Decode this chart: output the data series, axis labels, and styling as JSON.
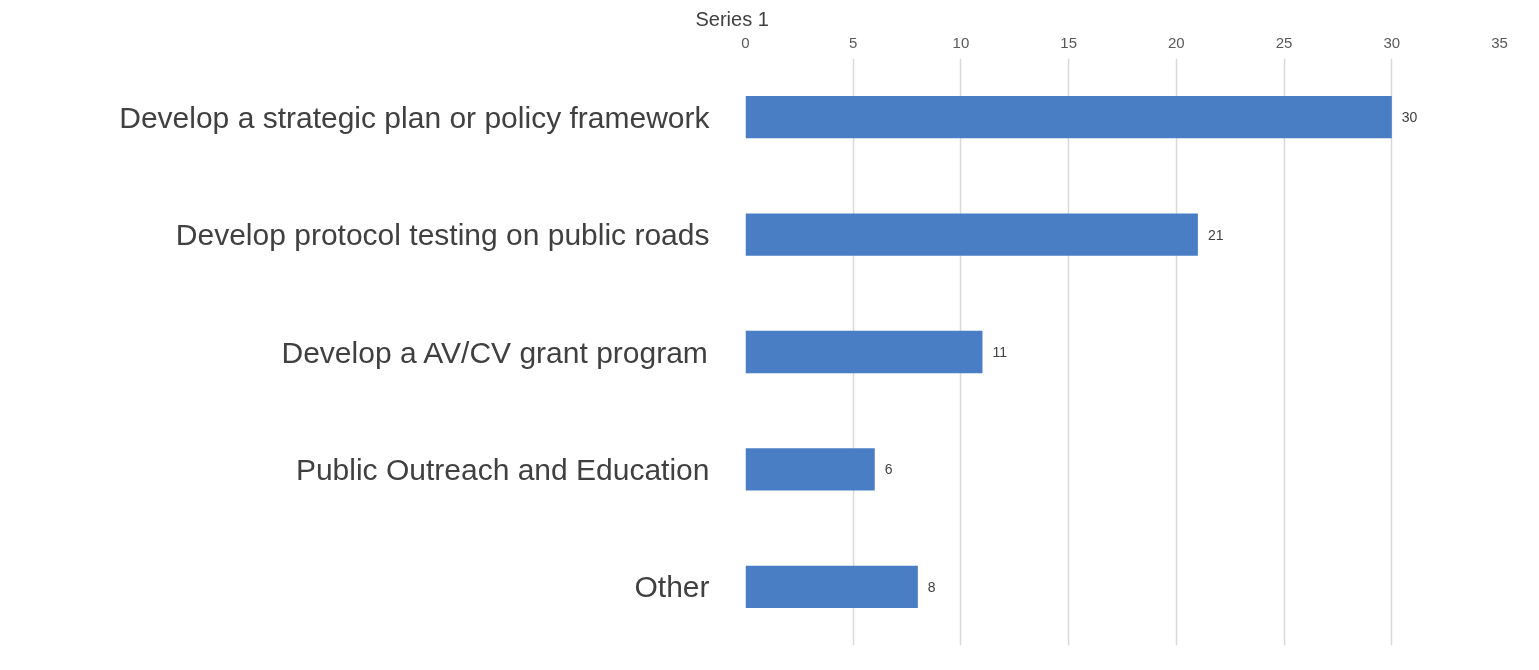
{
  "chart_data": {
    "type": "bar",
    "orientation": "horizontal",
    "title": "Series 1",
    "categories": [
      "Develop a strategic plan or policy framework",
      "Develop protocol testing on public roads",
      "Develop a AV/CV grant program",
      "Public Outreach and Education",
      "Other"
    ],
    "values": [
      30,
      21,
      11,
      6,
      8
    ],
    "color": "#4a7ec4",
    "xlim": [
      0,
      35
    ],
    "xticks": [
      0,
      5,
      10,
      15,
      20,
      25,
      30,
      35
    ],
    "grid": "x",
    "data_labels": true
  }
}
